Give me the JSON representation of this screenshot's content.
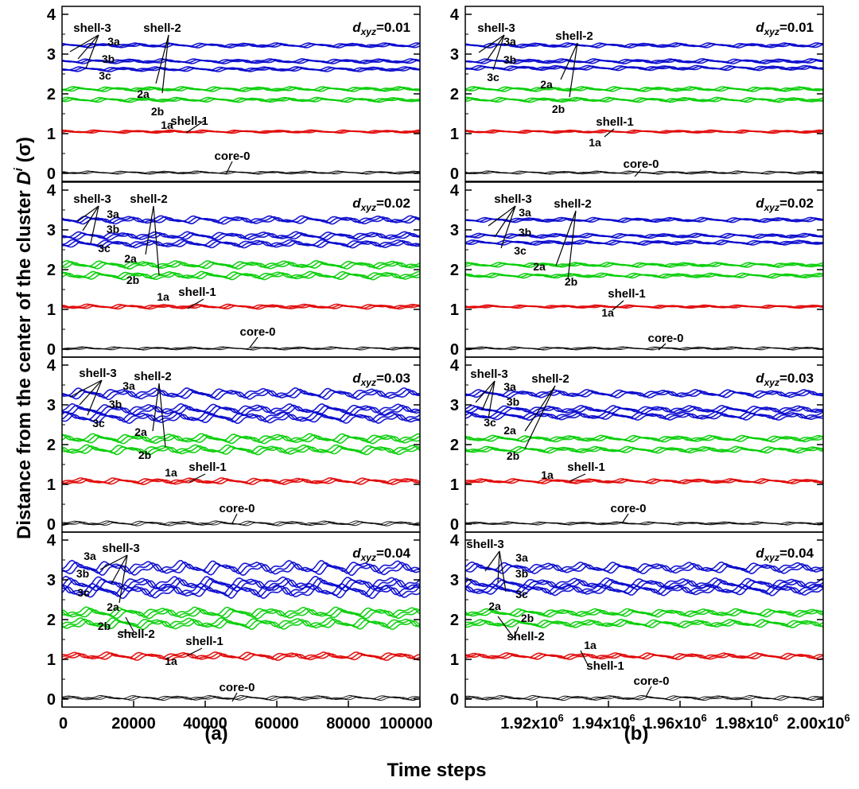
{
  "figure": {
    "ylabel_main": "Distance from the center of the cluster ",
    "ylabel_symbol": "D",
    "ylabel_sup": "i",
    "ylabel_unit": " (σ)",
    "xlabel": "Time steps",
    "column_labels": [
      "(a)",
      "(b)"
    ]
  },
  "chart_data": [
    {
      "type": "line",
      "column": "a",
      "row": 1,
      "annotation_prefix": "d",
      "annotation_sub": "xyz",
      "annotation_value": "=0.01",
      "xlim": [
        0,
        100000
      ],
      "ylim": [
        -0.2,
        4.2
      ],
      "yticks": [
        0,
        1,
        2,
        3,
        4
      ],
      "ytick_labels": [
        "0",
        "1",
        "2",
        "3",
        "4"
      ],
      "labels": [
        "shell-3",
        "shell-2",
        "3a",
        "3b",
        "3c",
        "2a",
        "2b",
        "1a",
        "shell-1",
        "core-0"
      ],
      "series": [
        {
          "name": "3a",
          "color": "#0000cc",
          "mean": 3.22,
          "amp": 0.03
        },
        {
          "name": "3b",
          "color": "#0000cc",
          "mean": 2.82,
          "amp": 0.03
        },
        {
          "name": "3c",
          "color": "#0000cc",
          "mean": 2.62,
          "amp": 0.03
        },
        {
          "name": "2a",
          "color": "#00cc00",
          "mean": 2.12,
          "amp": 0.03
        },
        {
          "name": "2b",
          "color": "#00cc00",
          "mean": 1.85,
          "amp": 0.03
        },
        {
          "name": "1a",
          "color": "#e00000",
          "mean": 1.05,
          "amp": 0.02
        },
        {
          "name": "core-0",
          "color": "#000000",
          "mean": 0.02,
          "amp": 0.02
        }
      ]
    },
    {
      "type": "line",
      "column": "b",
      "row": 1,
      "annotation_prefix": "d",
      "annotation_sub": "xyz",
      "annotation_value": "=0.01",
      "xlim": [
        1900000,
        2000000
      ],
      "ylim": [
        -0.2,
        4.2
      ],
      "yticks": [
        0,
        1,
        2,
        3,
        4
      ],
      "ytick_labels": [
        "0",
        "1",
        "2",
        "3",
        "4"
      ],
      "labels": [
        "shell-3",
        "shell-2",
        "3a",
        "3b",
        "3c",
        "2a",
        "2b",
        "shell-1",
        "1a",
        "core-0"
      ],
      "series": [
        {
          "name": "3a",
          "color": "#0000cc",
          "mean": 3.22,
          "amp": 0.03
        },
        {
          "name": "3b",
          "color": "#0000cc",
          "mean": 2.82,
          "amp": 0.03
        },
        {
          "name": "3c",
          "color": "#0000cc",
          "mean": 2.65,
          "amp": 0.03
        },
        {
          "name": "2a",
          "color": "#00cc00",
          "mean": 2.12,
          "amp": 0.03
        },
        {
          "name": "2b",
          "color": "#00cc00",
          "mean": 1.85,
          "amp": 0.03
        },
        {
          "name": "1a",
          "color": "#e00000",
          "mean": 1.05,
          "amp": 0.02
        },
        {
          "name": "core-0",
          "color": "#000000",
          "mean": 0.02,
          "amp": 0.02
        }
      ]
    },
    {
      "type": "line",
      "column": "a",
      "row": 2,
      "annotation_prefix": "d",
      "annotation_sub": "xyz",
      "annotation_value": "=0.02",
      "xlim": [
        0,
        100000
      ],
      "ylim": [
        -0.2,
        4.2
      ],
      "yticks": [
        0,
        1,
        2,
        3,
        4
      ],
      "ytick_labels": [
        "0",
        "1",
        "2",
        "3",
        "4"
      ],
      "labels": [
        "shell-3",
        "shell-2",
        "3a",
        "3b",
        "3c",
        "2a",
        "2b",
        "1a",
        "shell-1",
        "core-0"
      ],
      "series": [
        {
          "name": "3a",
          "color": "#0000cc",
          "mean": 3.25,
          "amp": 0.05
        },
        {
          "name": "3b",
          "color": "#0000cc",
          "mean": 2.85,
          "amp": 0.05
        },
        {
          "name": "3c",
          "color": "#0000cc",
          "mean": 2.65,
          "amp": 0.05
        },
        {
          "name": "2a",
          "color": "#00cc00",
          "mean": 2.12,
          "amp": 0.05
        },
        {
          "name": "2b",
          "color": "#00cc00",
          "mean": 1.85,
          "amp": 0.05
        },
        {
          "name": "1a",
          "color": "#e00000",
          "mean": 1.07,
          "amp": 0.03
        },
        {
          "name": "core-0",
          "color": "#000000",
          "mean": 0.02,
          "amp": 0.02
        }
      ]
    },
    {
      "type": "line",
      "column": "b",
      "row": 2,
      "annotation_prefix": "d",
      "annotation_sub": "xyz",
      "annotation_value": "=0.02",
      "xlim": [
        1900000,
        2000000
      ],
      "ylim": [
        -0.2,
        4.2
      ],
      "yticks": [
        0,
        1,
        2,
        3,
        4
      ],
      "ytick_labels": [
        "0",
        "1",
        "2",
        "3",
        "4"
      ],
      "labels": [
        "shell-3",
        "shell-2",
        "3a",
        "3b",
        "3c",
        "2a",
        "2b",
        "shell-1",
        "1a",
        "core-0"
      ],
      "series": [
        {
          "name": "3a",
          "color": "#0000cc",
          "mean": 3.25,
          "amp": 0.03
        },
        {
          "name": "3b",
          "color": "#0000cc",
          "mean": 2.85,
          "amp": 0.03
        },
        {
          "name": "3c",
          "color": "#0000cc",
          "mean": 2.68,
          "amp": 0.03
        },
        {
          "name": "2a",
          "color": "#00cc00",
          "mean": 2.12,
          "amp": 0.03
        },
        {
          "name": "2b",
          "color": "#00cc00",
          "mean": 1.85,
          "amp": 0.03
        },
        {
          "name": "1a",
          "color": "#e00000",
          "mean": 1.07,
          "amp": 0.02
        },
        {
          "name": "core-0",
          "color": "#000000",
          "mean": 0.02,
          "amp": 0.02
        }
      ]
    },
    {
      "type": "line",
      "column": "a",
      "row": 3,
      "annotation_prefix": "d",
      "annotation_sub": "xyz",
      "annotation_value": "=0.03",
      "xlim": [
        0,
        100000
      ],
      "ylim": [
        -0.2,
        4.2
      ],
      "yticks": [
        0,
        1,
        2,
        3,
        4
      ],
      "ytick_labels": [
        "0",
        "1",
        "2",
        "3",
        "4"
      ],
      "labels": [
        "shell-3",
        "shell-2",
        "3a",
        "3b",
        "3c",
        "2a",
        "2b",
        "1a",
        "shell-1",
        "core-0"
      ],
      "series": [
        {
          "name": "3a",
          "color": "#0000cc",
          "mean": 3.28,
          "amp": 0.07
        },
        {
          "name": "3b",
          "color": "#0000cc",
          "mean": 2.88,
          "amp": 0.07
        },
        {
          "name": "3c",
          "color": "#0000cc",
          "mean": 2.68,
          "amp": 0.07
        },
        {
          "name": "2a",
          "color": "#00cc00",
          "mean": 2.15,
          "amp": 0.06
        },
        {
          "name": "2b",
          "color": "#00cc00",
          "mean": 1.87,
          "amp": 0.06
        },
        {
          "name": "1a",
          "color": "#e00000",
          "mean": 1.08,
          "amp": 0.04
        },
        {
          "name": "core-0",
          "color": "#000000",
          "mean": 0.02,
          "amp": 0.03
        }
      ]
    },
    {
      "type": "line",
      "column": "b",
      "row": 3,
      "annotation_prefix": "d",
      "annotation_sub": "xyz",
      "annotation_value": "=0.03",
      "xlim": [
        1900000,
        2000000
      ],
      "ylim": [
        -0.2,
        4.2
      ],
      "yticks": [
        0,
        1,
        2,
        3,
        4
      ],
      "ytick_labels": [
        "0",
        "1",
        "2",
        "3",
        "4"
      ],
      "labels": [
        "shell-3",
        "shell-2",
        "3a",
        "3b",
        "3c",
        "2a",
        "2b",
        "1a",
        "shell-1",
        "core-0"
      ],
      "series": [
        {
          "name": "3a",
          "color": "#0000cc",
          "mean": 3.28,
          "amp": 0.05
        },
        {
          "name": "3b",
          "color": "#0000cc",
          "mean": 2.88,
          "amp": 0.05
        },
        {
          "name": "3c",
          "color": "#0000cc",
          "mean": 2.72,
          "amp": 0.05
        },
        {
          "name": "2a",
          "color": "#00cc00",
          "mean": 2.15,
          "amp": 0.04
        },
        {
          "name": "2b",
          "color": "#00cc00",
          "mean": 1.87,
          "amp": 0.04
        },
        {
          "name": "1a",
          "color": "#e00000",
          "mean": 1.08,
          "amp": 0.03
        },
        {
          "name": "core-0",
          "color": "#000000",
          "mean": 0.02,
          "amp": 0.02
        }
      ]
    },
    {
      "type": "line",
      "column": "a",
      "row": 4,
      "annotation_prefix": "d",
      "annotation_sub": "xyz",
      "annotation_value": "=0.04",
      "xlim": [
        0,
        100000
      ],
      "ylim": [
        -0.2,
        4.2
      ],
      "xticks": [
        0,
        20000,
        40000,
        60000,
        80000,
        100000
      ],
      "xtick_labels": [
        "0",
        "20000",
        "40000",
        "60000",
        "80000",
        "100000"
      ],
      "yticks": [
        0,
        1,
        2,
        3,
        4
      ],
      "ytick_labels": [
        "0",
        "1",
        "2",
        "3",
        "4"
      ],
      "labels": [
        "3a",
        "shell-3",
        "3b",
        "3c",
        "2a",
        "2b",
        "shell-2",
        "shell-1",
        "1a",
        "core-0"
      ],
      "series": [
        {
          "name": "3a",
          "color": "#0000cc",
          "mean": 3.3,
          "amp": 0.09
        },
        {
          "name": "3b",
          "color": "#0000cc",
          "mean": 2.9,
          "amp": 0.09
        },
        {
          "name": "3c",
          "color": "#0000cc",
          "mean": 2.72,
          "amp": 0.09
        },
        {
          "name": "2a",
          "color": "#00cc00",
          "mean": 2.17,
          "amp": 0.07
        },
        {
          "name": "2b",
          "color": "#00cc00",
          "mean": 1.9,
          "amp": 0.07
        },
        {
          "name": "1a",
          "color": "#e00000",
          "mean": 1.08,
          "amp": 0.05
        },
        {
          "name": "core-0",
          "color": "#000000",
          "mean": 0.03,
          "amp": 0.03
        }
      ]
    },
    {
      "type": "line",
      "column": "b",
      "row": 4,
      "annotation_prefix": "d",
      "annotation_sub": "xyz",
      "annotation_value": "=0.04",
      "xlim": [
        1900000,
        2000000
      ],
      "ylim": [
        -0.2,
        4.2
      ],
      "xticks": [
        1920000,
        1940000,
        1960000,
        1980000,
        2000000
      ],
      "xtick_labels": [
        "1.92x10^6",
        "1.94x10^6",
        "1.96x10^6",
        "1.98x10^6",
        "2.00x10^6"
      ],
      "yticks": [
        0,
        1,
        2,
        3,
        4
      ],
      "ytick_labels": [
        "0",
        "1",
        "2",
        "3",
        "4"
      ],
      "labels": [
        "shell-3",
        "3a",
        "3b",
        "3c",
        "2a",
        "2b",
        "shell-2",
        "1a",
        "shell-1",
        "core-0"
      ],
      "series": [
        {
          "name": "3a",
          "color": "#0000cc",
          "mean": 3.3,
          "amp": 0.07
        },
        {
          "name": "3b",
          "color": "#0000cc",
          "mean": 2.9,
          "amp": 0.07
        },
        {
          "name": "3c",
          "color": "#0000cc",
          "mean": 2.75,
          "amp": 0.07
        },
        {
          "name": "2a",
          "color": "#00cc00",
          "mean": 2.17,
          "amp": 0.05
        },
        {
          "name": "2b",
          "color": "#00cc00",
          "mean": 1.9,
          "amp": 0.05
        },
        {
          "name": "1a",
          "color": "#e00000",
          "mean": 1.08,
          "amp": 0.04
        },
        {
          "name": "core-0",
          "color": "#000000",
          "mean": 0.03,
          "amp": 0.03
        }
      ]
    }
  ]
}
